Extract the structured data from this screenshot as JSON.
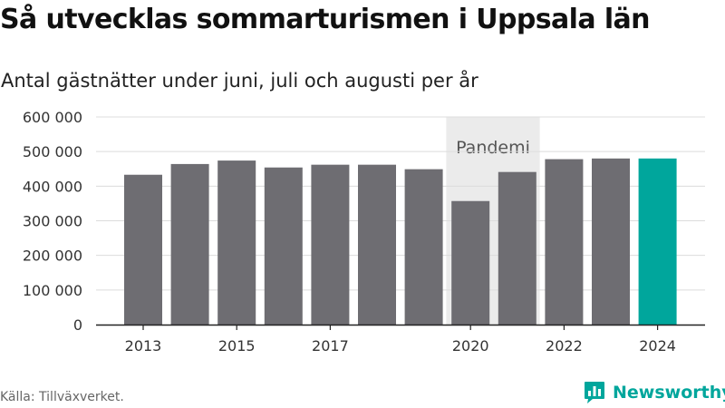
{
  "title": "Så utvecklas sommarturismen i Uppsala län",
  "subtitle": "Antal gästnätter under juni, juli och augusti per år",
  "source": "Källa: Tillväxverket.",
  "brand": {
    "name": "Newsworthy",
    "logo_icon": "newsworthy-logo-icon"
  },
  "colors": {
    "bar": "#6e6d72",
    "highlight": "#00a69c",
    "band": "#ebebeb",
    "grid": "#dcdcdc"
  },
  "chart_data": {
    "type": "bar",
    "title": "Så utvecklas sommarturismen i Uppsala län",
    "subtitle": "Antal gästnätter under juni, juli och augusti per år",
    "categories": [
      "2013",
      "2014",
      "2015",
      "2016",
      "2017",
      "2018",
      "2019",
      "2020",
      "2021",
      "2022",
      "2023",
      "2024"
    ],
    "values": [
      433000,
      464000,
      474000,
      454000,
      462000,
      462000,
      449000,
      357000,
      441000,
      478000,
      480000,
      480000
    ],
    "highlight_category": "2024",
    "x_tick_labels": [
      "2013",
      "2015",
      "2017",
      "2020",
      "2022",
      "2024"
    ],
    "y_ticks": [
      0,
      100000,
      200000,
      300000,
      400000,
      500000,
      600000
    ],
    "y_tick_labels": [
      "0",
      "100 000",
      "200 000",
      "300 000",
      "400 000",
      "500 000",
      "600 000"
    ],
    "ylim": [
      0,
      600000
    ],
    "xlabel": "",
    "ylabel": "",
    "grid": true,
    "annotation": {
      "label": "Pandemi",
      "from": "2020",
      "to": "2021"
    }
  }
}
